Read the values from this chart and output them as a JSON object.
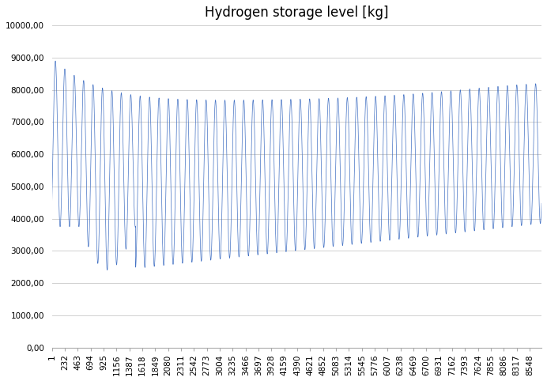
{
  "title": "Hydrogen storage level [kg]",
  "line_color": "#4472C4",
  "background_color": "#ffffff",
  "grid_color": "#d0d0d0",
  "ylim": [
    0,
    10000
  ],
  "yticks": [
    0,
    1000,
    2000,
    3000,
    4000,
    5000,
    6000,
    7000,
    8000,
    9000,
    10000
  ],
  "xtick_labels": [
    "1",
    "232",
    "463",
    "694",
    "925",
    "1156",
    "1387",
    "1618",
    "1849",
    "2080",
    "2311",
    "2542",
    "2773",
    "3004",
    "3235",
    "3466",
    "3697",
    "3928",
    "4159",
    "4390",
    "4621",
    "4852",
    "5083",
    "5314",
    "5545",
    "5776",
    "6007",
    "6238",
    "6469",
    "6700",
    "6931",
    "7162",
    "7393",
    "7624",
    "7855",
    "8086",
    "8317",
    "8548"
  ],
  "n_points": 8760,
  "title_fontsize": 12,
  "tick_fontsize": 7.5,
  "figsize": [
    6.92,
    4.82
  ],
  "dpi": 100
}
